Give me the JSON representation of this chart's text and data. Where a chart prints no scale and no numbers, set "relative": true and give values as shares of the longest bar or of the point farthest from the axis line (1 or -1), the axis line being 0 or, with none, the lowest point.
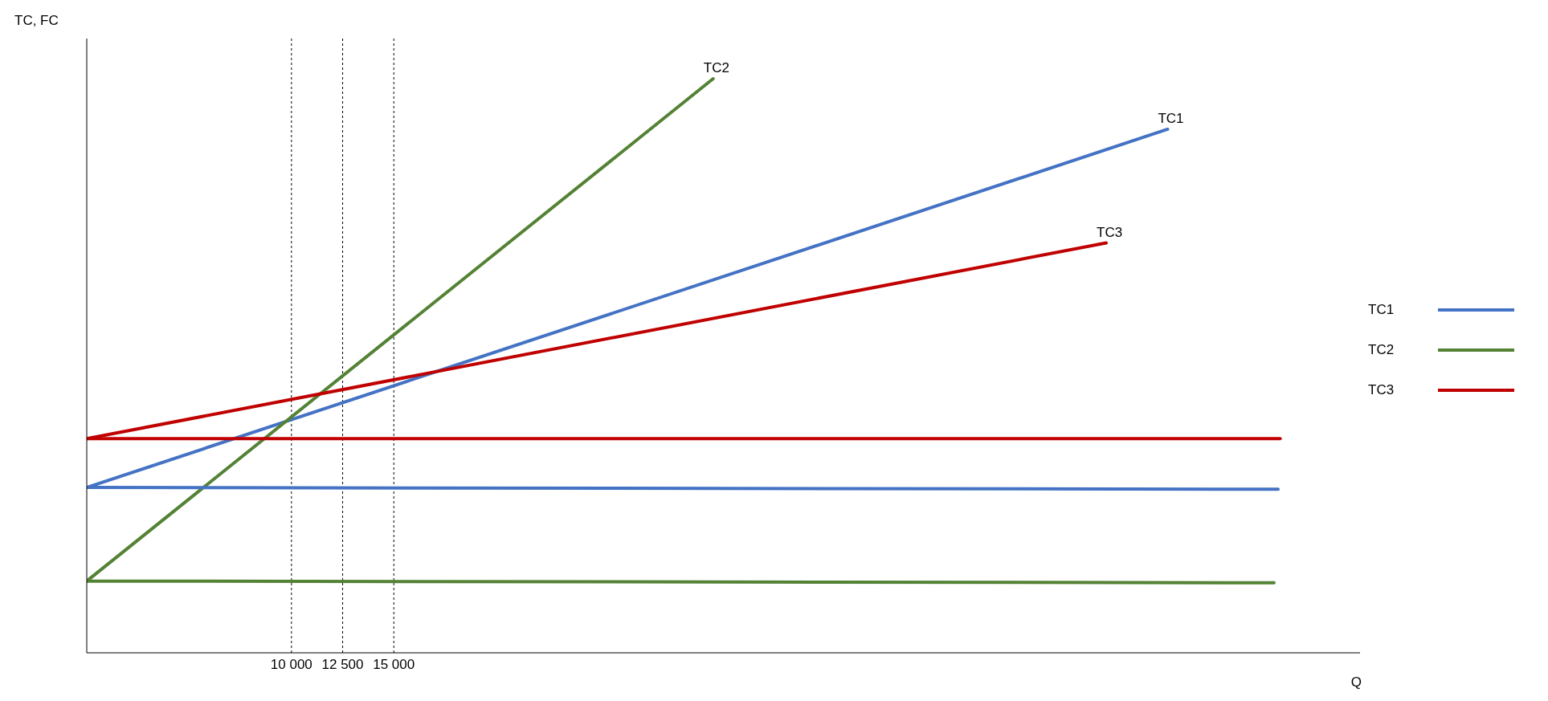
{
  "chart_data": {
    "type": "line",
    "relative": true,
    "xlabel": "Q",
    "ylabel": "TC, FC",
    "xlim": [
      0,
      62200
    ],
    "xticks": [
      {
        "value": 10000,
        "label": "10 000"
      },
      {
        "value": 12500,
        "label": "12 500"
      },
      {
        "value": 15000,
        "label": "15 000"
      }
    ],
    "tick_labels": "x",
    "legend": "right",
    "marker": "none",
    "line_style": "solid",
    "ref_lines": [
      {
        "axis": "x",
        "value": 10000,
        "color": "#000000",
        "line_style": "dotted"
      },
      {
        "axis": "x",
        "value": 12500,
        "color": "#000000",
        "line_style": "dotted"
      },
      {
        "axis": "x",
        "value": 15000,
        "color": "#000000",
        "line_style": "dotted"
      }
    ],
    "series": [
      {
        "name": "TC1",
        "color": "#4472c4",
        "x": [
          0,
          52800
        ],
        "values": [
          0.288,
          0.912
        ]
      },
      {
        "name": "TC2",
        "color": "#548235",
        "x": [
          0,
          30600
        ],
        "values": [
          0.125,
          1
        ]
      },
      {
        "name": "TC3",
        "color": "#c00000",
        "x": [
          0,
          49800
        ],
        "values": [
          0.373,
          0.714
        ]
      },
      {
        "color": "#4472c4",
        "x": [
          0,
          58200
        ],
        "values": [
          0.288,
          0.285
        ]
      },
      {
        "color": "#548235",
        "x": [
          0,
          58000
        ],
        "values": [
          0.125,
          0.122
        ]
      },
      {
        "color": "#c00000",
        "x": [
          0,
          58300
        ],
        "values": [
          0.373,
          0.373
        ]
      }
    ]
  }
}
